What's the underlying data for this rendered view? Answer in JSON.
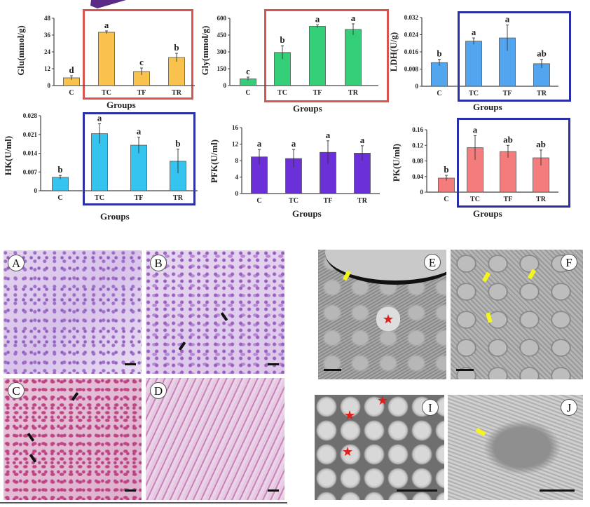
{
  "figure": {
    "groups_label": "Groups",
    "micrograph_labels": [
      "A",
      "B",
      "C",
      "D",
      "E",
      "F",
      "I",
      "J"
    ]
  },
  "chart_data": [
    {
      "type": "bar",
      "id": "glu",
      "ylabel": "Glu(mmol/g)",
      "xlabel": "Groups",
      "categories": [
        "C",
        "TC",
        "TF",
        "TR"
      ],
      "values": [
        5.5,
        38,
        10,
        20
      ],
      "errors": [
        1.5,
        1,
        2.5,
        3
      ],
      "significance": [
        "d",
        "a",
        "c",
        "b"
      ],
      "ylim": [
        0,
        48
      ],
      "yticks": [
        "0",
        "12",
        "24",
        "36",
        "48"
      ],
      "color": "#f8c24d",
      "highlight_box": "#d9534f"
    },
    {
      "type": "bar",
      "id": "gly",
      "ylabel": "Gly(mmol/g)",
      "xlabel": "Groups",
      "categories": [
        "C",
        "TC",
        "TF",
        "TR"
      ],
      "values": [
        60,
        295,
        528,
        500
      ],
      "errors": [
        15,
        60,
        12,
        50
      ],
      "significance": [
        "c",
        "b",
        "a",
        "a"
      ],
      "ylim": [
        0,
        600
      ],
      "yticks": [
        "0",
        "150",
        "300",
        "450",
        "600"
      ],
      "color": "#34cd78",
      "highlight_box": "#d9534f"
    },
    {
      "type": "bar",
      "id": "ldh",
      "ylabel": "LDH(U/g)",
      "xlabel": "Groups",
      "categories": [
        "C",
        "TC",
        "TF",
        "TR"
      ],
      "values": [
        0.011,
        0.021,
        0.0225,
        0.0105
      ],
      "errors": [
        0.0015,
        0.0015,
        0.006,
        0.002
      ],
      "significance": [
        "b",
        "a",
        "a",
        "ab"
      ],
      "ylim": [
        0,
        0.032
      ],
      "yticks": [
        "0",
        "0.008",
        "0.016",
        "0.024",
        "0.032"
      ],
      "color": "#52a6f0",
      "highlight_box": "#2b2fa6"
    },
    {
      "type": "bar",
      "id": "hk",
      "ylabel": "HK(U/ml)",
      "xlabel": "Groups",
      "categories": [
        "C",
        "TC",
        "TF",
        "TR"
      ],
      "values": [
        0.005,
        0.0213,
        0.017,
        0.011
      ],
      "errors": [
        0.0007,
        0.0037,
        0.003,
        0.0045
      ],
      "significance": [
        "b",
        "a",
        "a",
        "b"
      ],
      "ylim": [
        0,
        0.028
      ],
      "yticks": [
        "0",
        "0.007",
        "0.014",
        "0.021",
        "0.028"
      ],
      "color": "#35c4ef",
      "highlight_box": "#2b2fa6"
    },
    {
      "type": "bar",
      "id": "pfk",
      "ylabel": "PFK(U/ml)",
      "xlabel": "Groups",
      "categories": [
        "C",
        "TC",
        "TF",
        "TR"
      ],
      "values": [
        8.9,
        8.5,
        10,
        9.8
      ],
      "errors": [
        1.8,
        2.2,
        2.8,
        1.8
      ],
      "significance": [
        "a",
        "a",
        "a",
        "a"
      ],
      "ylim": [
        0,
        16
      ],
      "yticks": [
        "0",
        "4",
        "8",
        "12",
        "16"
      ],
      "color": "#6b30d8",
      "highlight_box": null
    },
    {
      "type": "bar",
      "id": "pk",
      "ylabel": "PK(U/ml)",
      "xlabel": "Groups",
      "categories": [
        "C",
        "TC",
        "TF",
        "TR"
      ],
      "values": [
        0.036,
        0.114,
        0.104,
        0.088
      ],
      "errors": [
        0.007,
        0.031,
        0.016,
        0.02
      ],
      "significance": [
        "b",
        "a",
        "ab",
        "ab"
      ],
      "ylim": [
        0,
        0.16
      ],
      "yticks": [
        "0",
        "0.04",
        "0.08",
        "0.12",
        "0.16"
      ],
      "color": "#f47c7c",
      "highlight_box": "#2b2fa6"
    }
  ]
}
